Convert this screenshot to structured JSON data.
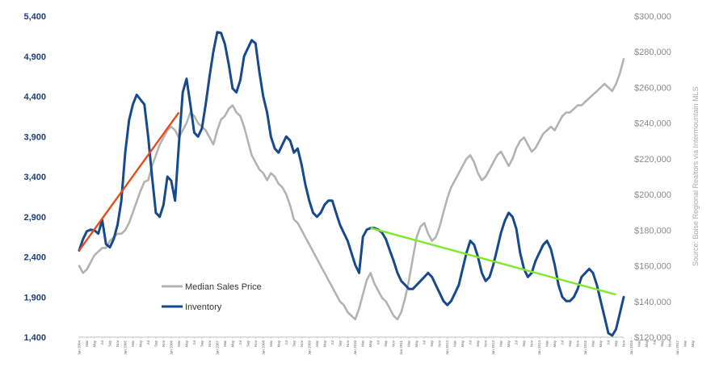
{
  "chart_data": {
    "type": "line",
    "title": "",
    "source": "Source: Boise Regional Realtors via Intermountain MLS",
    "y_left": {
      "ticks": [
        "5,400",
        "4,900",
        "4,400",
        "3,900",
        "3,400",
        "2,900",
        "2,400",
        "1,900",
        "1,400"
      ],
      "ylim": [
        1400,
        5400
      ]
    },
    "y_right": {
      "ticks": [
        "$300,000",
        "$280,000",
        "$260,000",
        "$240,000",
        "$220,000",
        "$200,000",
        "$180,000",
        "$160,000",
        "$140,000",
        "$120,000"
      ],
      "ylim": [
        120000,
        300000
      ]
    },
    "x_tick_labels": [
      "Jan 2004",
      "Mar",
      "May",
      "Jul",
      "Sep",
      "Nov",
      "Jan 2005",
      "Mar",
      "May",
      "Jul",
      "Sep",
      "Nov",
      "Jan 2006",
      "Mar",
      "May",
      "Jul",
      "Sep",
      "Nov",
      "Jan 2007",
      "Mar",
      "May",
      "Jul",
      "Sep",
      "Nov",
      "Jan 2008",
      "Mar",
      "May",
      "Jul",
      "Sep",
      "Nov",
      "Jan 2009",
      "Mar",
      "May",
      "Jul",
      "Sep",
      "Nov",
      "Jan 2010",
      "Mar",
      "May",
      "Jul",
      "Sep",
      "Nov",
      "Jan 2011",
      "Mar",
      "May",
      "Jul",
      "Sep",
      "Nov",
      "Jan 2012",
      "Mar",
      "May",
      "Jul",
      "Sep",
      "Nov",
      "Jan 2013",
      "Mar",
      "May",
      "Jul",
      "Sep",
      "Nov",
      "Jan 2014",
      "Mar",
      "May",
      "Jul",
      "Sep",
      "Nov",
      "Jan 2015",
      "Mar",
      "May",
      "Jul",
      "Sep",
      "Nov",
      "Jan 2016",
      "Mar",
      "May",
      "Jul",
      "Sep",
      "Nov",
      "Jan 2017",
      "Mar",
      "May"
    ],
    "series": [
      {
        "name": "Median Sales Price",
        "axis": "right",
        "color": "#b3b3b3",
        "values": [
          160000,
          156000,
          158000,
          162000,
          166000,
          168000,
          170000,
          170000,
          174000,
          176000,
          178000,
          178000,
          180000,
          184000,
          190000,
          196000,
          202000,
          207000,
          208000,
          216000,
          222000,
          228000,
          232000,
          236000,
          238000,
          236000,
          232000,
          236000,
          240000,
          246000,
          244000,
          240000,
          238000,
          236000,
          232000,
          228000,
          236000,
          242000,
          244000,
          248000,
          250000,
          246000,
          244000,
          238000,
          230000,
          222000,
          218000,
          214000,
          212000,
          208000,
          212000,
          210000,
          206000,
          204000,
          200000,
          194000,
          186000,
          184000,
          180000,
          176000,
          172000,
          168000,
          164000,
          160000,
          156000,
          152000,
          148000,
          144000,
          140000,
          138000,
          134000,
          132000,
          130000,
          136000,
          144000,
          152000,
          156000,
          150000,
          146000,
          142000,
          140000,
          136000,
          132000,
          130000,
          134000,
          142000,
          152000,
          164000,
          176000,
          182000,
          184000,
          178000,
          174000,
          176000,
          182000,
          190000,
          198000,
          204000,
          208000,
          212000,
          216000,
          220000,
          222000,
          218000,
          212000,
          208000,
          210000,
          214000,
          218000,
          222000,
          224000,
          220000,
          216000,
          220000,
          226000,
          230000,
          232000,
          228000,
          224000,
          226000,
          230000,
          234000,
          236000,
          238000,
          236000,
          240000,
          244000,
          246000,
          246000,
          248000,
          250000,
          250000,
          252000,
          254000,
          256000,
          258000,
          260000,
          262000,
          260000,
          258000,
          262000,
          268000,
          276000
        ]
      },
      {
        "name": "Inventory",
        "axis": "left",
        "color": "#174a8c",
        "values": [
          2480,
          2620,
          2720,
          2740,
          2730,
          2690,
          2860,
          2560,
          2520,
          2620,
          2800,
          3100,
          3700,
          4100,
          4300,
          4420,
          4360,
          4300,
          3900,
          3400,
          2950,
          2900,
          3050,
          3400,
          3350,
          3100,
          3800,
          4450,
          4620,
          4300,
          3950,
          3900,
          4000,
          4300,
          4650,
          4960,
          5200,
          5190,
          5050,
          4800,
          4500,
          4450,
          4600,
          4900,
          5000,
          5100,
          5060,
          4700,
          4400,
          4200,
          3900,
          3750,
          3700,
          3800,
          3900,
          3850,
          3700,
          3750,
          3550,
          3300,
          3100,
          2950,
          2900,
          2950,
          3050,
          3100,
          3100,
          2950,
          2800,
          2700,
          2600,
          2450,
          2300,
          2200,
          2650,
          2740,
          2760,
          2760,
          2740,
          2700,
          2620,
          2480,
          2350,
          2200,
          2100,
          2050,
          2000,
          2000,
          2050,
          2100,
          2150,
          2200,
          2150,
          2050,
          1950,
          1850,
          1800,
          1850,
          1950,
          2050,
          2250,
          2450,
          2600,
          2550,
          2400,
          2200,
          2100,
          2150,
          2300,
          2500,
          2700,
          2850,
          2950,
          2900,
          2750,
          2450,
          2250,
          2150,
          2200,
          2350,
          2450,
          2550,
          2600,
          2500,
          2300,
          2050,
          1900,
          1850,
          1850,
          1900,
          2000,
          2150,
          2200,
          2250,
          2200,
          2050,
          1850,
          1650,
          1450,
          1420,
          1500,
          1700,
          1900
        ]
      }
    ],
    "trend_lines": [
      {
        "name": "inventory-trend-rising",
        "color": "#e84a1c",
        "from": {
          "month": 0,
          "value": 2480
        },
        "to": {
          "month": 26,
          "value": 4200
        }
      },
      {
        "name": "inventory-trend-falling",
        "color": "#7ee82a",
        "from": {
          "month": 76,
          "value": 2760
        },
        "to": {
          "month": 140,
          "value": 1930
        }
      }
    ],
    "legend": {
      "position": "center-left"
    }
  }
}
